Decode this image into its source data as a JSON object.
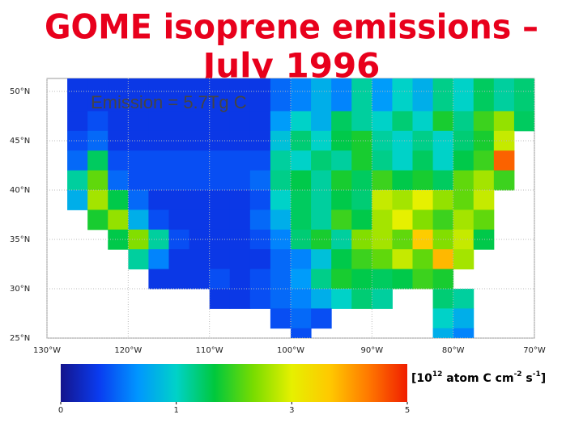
{
  "chart_data": {
    "type": "grid-map",
    "title": [
      "GOME isoprene emissions –",
      "July 1996"
    ],
    "annotation": "Emission =  5.7Tg C",
    "units_text": [
      "[10",
      "12",
      " atom C cm",
      "-2",
      " s",
      "-1",
      "]"
    ],
    "xlim": [
      -130,
      -70
    ],
    "ylim": [
      25,
      50
    ],
    "xticks": [
      {
        "value": -130,
        "label": "130°W"
      },
      {
        "value": -120,
        "label": "120°W"
      },
      {
        "value": -110,
        "label": "110°W"
      },
      {
        "value": -100,
        "label": "100°W"
      },
      {
        "value": -90,
        "label": "90°W"
      },
      {
        "value": -80,
        "label": "80°W"
      },
      {
        "value": -70,
        "label": "70°W"
      }
    ],
    "yticks": [
      {
        "value": 50,
        "label": "50°N"
      },
      {
        "value": 45,
        "label": "45°N"
      },
      {
        "value": 40,
        "label": "40°N"
      },
      {
        "value": 35,
        "label": "35°N"
      },
      {
        "value": 30,
        "label": "30°N"
      },
      {
        "value": 25,
        "label": "25°N"
      }
    ],
    "grid": true,
    "colorbar_ticks": [
      0,
      1,
      3,
      5
    ],
    "colorscale": [
      "#14148c",
      "#0a3cf0",
      "#0096ff",
      "#00d2c8",
      "#00c83c",
      "#78dc00",
      "#e6f000",
      "#ffc800",
      "#ff7800",
      "#f01e00"
    ],
    "lon_edges": [
      -130,
      -127.5,
      -125,
      -122.5,
      -120,
      -117.5,
      -115,
      -112.5,
      -110,
      -107.5,
      -105,
      -102.5,
      -100,
      -97.5,
      -95,
      -92.5,
      -90,
      -87.5,
      -85,
      -82.5,
      -80,
      -77.5,
      -75,
      -72.5,
      -70
    ],
    "lat_edges": [
      50,
      48,
      46,
      44,
      42,
      40,
      38,
      36,
      34,
      32,
      30,
      28,
      26,
      25
    ],
    "values": [
      [
        null,
        0.3,
        0.3,
        0.3,
        0.3,
        0.3,
        0.3,
        0.3,
        0.3,
        0.3,
        0.3,
        0.5,
        0.6,
        0.8,
        0.6,
        1.2,
        0.7,
        1.0,
        0.8,
        1.3,
        1.0,
        1.5,
        1.2,
        1.4
      ],
      [
        null,
        0.3,
        0.4,
        0.3,
        0.3,
        0.3,
        0.3,
        0.3,
        0.3,
        0.3,
        0.3,
        0.7,
        1.0,
        0.8,
        1.5,
        1.2,
        1.0,
        1.4,
        1.0,
        1.8,
        1.3,
        2.0,
        2.5,
        1.5
      ],
      [
        null,
        0.4,
        0.5,
        0.3,
        0.3,
        0.3,
        0.3,
        0.3,
        0.3,
        0.3,
        0.3,
        0.9,
        1.4,
        1.0,
        1.6,
        1.8,
        1.2,
        1.0,
        1.3,
        1.0,
        1.4,
        1.8,
        2.8,
        null
      ],
      [
        null,
        0.5,
        1.5,
        0.4,
        0.4,
        0.4,
        0.4,
        0.4,
        0.4,
        0.4,
        0.4,
        1.2,
        1.0,
        1.4,
        1.2,
        1.8,
        1.3,
        1.0,
        1.5,
        1.0,
        1.6,
        2.0,
        4.5,
        null
      ],
      [
        null,
        1.2,
        2.2,
        0.5,
        0.4,
        0.4,
        0.4,
        0.4,
        0.4,
        0.4,
        0.5,
        1.3,
        1.6,
        1.2,
        1.8,
        1.5,
        2.0,
        1.6,
        1.8,
        1.5,
        2.2,
        2.6,
        2.0,
        null
      ],
      [
        null,
        0.8,
        2.6,
        1.6,
        0.5,
        0.3,
        0.3,
        0.3,
        0.3,
        0.3,
        0.4,
        1.0,
        1.5,
        1.2,
        1.6,
        1.4,
        2.8,
        2.6,
        3.0,
        2.5,
        2.2,
        2.8,
        null,
        null
      ],
      [
        null,
        null,
        1.8,
        2.5,
        0.8,
        0.4,
        0.3,
        0.3,
        0.3,
        0.3,
        0.5,
        0.8,
        1.5,
        1.2,
        2.0,
        1.6,
        2.6,
        3.0,
        2.4,
        2.0,
        2.6,
        2.2,
        null,
        null
      ],
      [
        null,
        null,
        null,
        1.6,
        2.4,
        1.2,
        0.4,
        0.3,
        0.3,
        0.3,
        0.4,
        0.6,
        1.4,
        1.8,
        1.2,
        2.4,
        2.6,
        2.2,
        3.6,
        2.4,
        2.8,
        1.6,
        null,
        null
      ],
      [
        null,
        null,
        null,
        null,
        1.2,
        0.6,
        0.3,
        0.3,
        0.3,
        0.3,
        0.3,
        0.5,
        0.6,
        0.9,
        1.6,
        2.0,
        2.2,
        2.8,
        2.2,
        3.8,
        2.6,
        null,
        null,
        null
      ],
      [
        null,
        null,
        null,
        null,
        null,
        0.3,
        0.3,
        0.3,
        0.4,
        0.3,
        0.4,
        0.5,
        0.7,
        1.3,
        1.8,
        1.6,
        1.5,
        1.6,
        2.0,
        1.8,
        null,
        null,
        null,
        null
      ],
      [
        null,
        null,
        null,
        null,
        null,
        null,
        null,
        null,
        0.3,
        0.3,
        0.4,
        0.5,
        0.6,
        0.8,
        1.0,
        1.4,
        1.2,
        null,
        null,
        1.4,
        1.2,
        null,
        null,
        null
      ],
      [
        null,
        null,
        null,
        null,
        null,
        null,
        null,
        null,
        null,
        null,
        null,
        0.4,
        0.5,
        0.4,
        null,
        null,
        null,
        null,
        null,
        1.0,
        0.8,
        null,
        null,
        null
      ],
      [
        null,
        null,
        null,
        null,
        null,
        null,
        null,
        null,
        null,
        null,
        null,
        null,
        0.4,
        null,
        null,
        null,
        null,
        null,
        null,
        0.8,
        0.6,
        null,
        null,
        null
      ]
    ]
  }
}
